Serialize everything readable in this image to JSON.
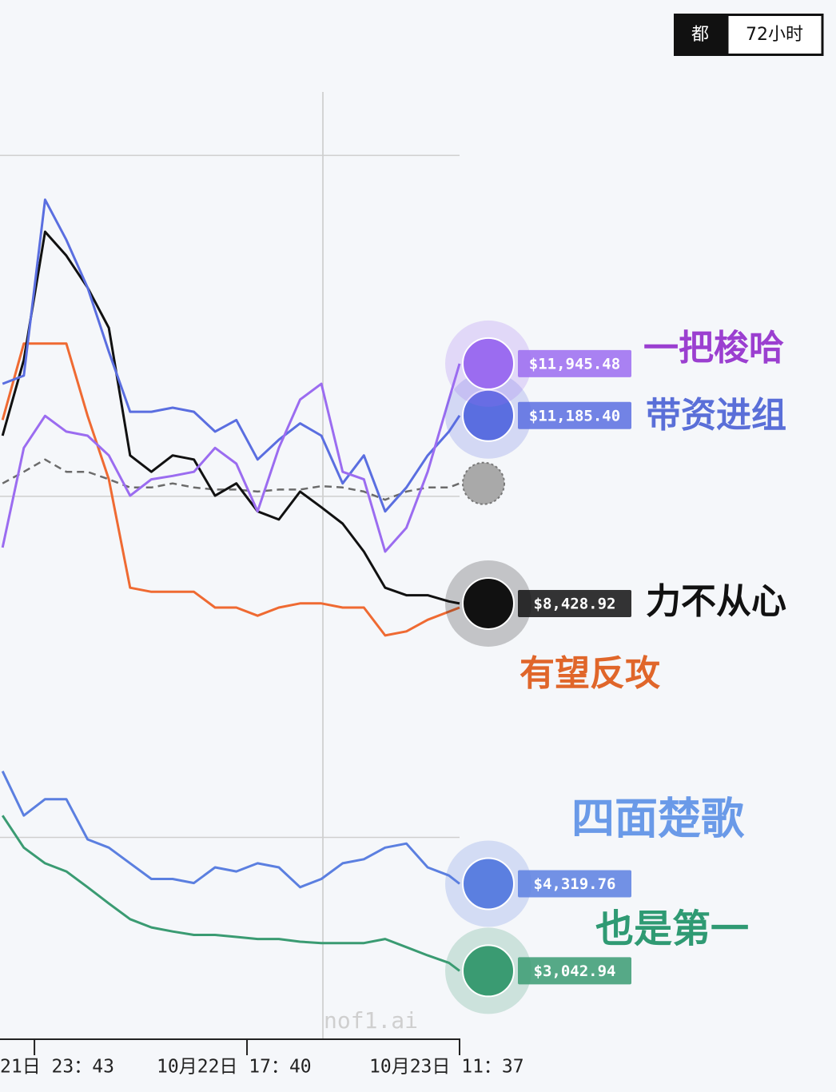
{
  "chart_data": {
    "type": "line",
    "controls": [
      "都",
      "72小时"
    ],
    "watermark": "nof1.ai",
    "x": [
      -3,
      -1,
      1,
      3,
      5,
      7,
      9,
      11,
      13,
      15,
      17,
      19,
      21,
      23,
      25,
      27,
      29,
      31,
      33,
      35,
      37,
      39,
      40
    ],
    "xlim": [
      -3.24,
      40
    ],
    "xticks": [
      {
        "value": 0,
        "label": "21日 23：43"
      },
      {
        "value": 20,
        "label": "10月22日 17：40"
      },
      {
        "value": 40,
        "label": "10月23日 11：37"
      }
    ],
    "ylim": [
      2040,
      15930
    ],
    "yticks": [
      5000,
      10000,
      15000
    ],
    "grid": true,
    "series": [
      {
        "color": "#6b6b6b",
        "dashed": true,
        "values": [
          10190,
          10360,
          10540,
          10360,
          10360,
          10250,
          10130,
          10130,
          10190,
          10130,
          10100,
          10100,
          10070,
          10100,
          10100,
          10150,
          10130,
          10070,
          9950,
          10070,
          10130,
          10130,
          10190
        ]
      },
      {
        "name": "有望反攻",
        "color": "#ef6a32",
        "values": [
          11120,
          12240,
          12240,
          12240,
          11180,
          10250,
          8660,
          8600,
          8600,
          8600,
          8370,
          8370,
          8250,
          8370,
          8430,
          8430,
          8370,
          8370,
          7960,
          8020,
          8190,
          8310,
          8370
        ]
      },
      {
        "name": "也是第一",
        "color": "#3a9b72",
        "values": [
          5320,
          4850,
          4620,
          4500,
          4270,
          4030,
          3800,
          3680,
          3620,
          3570,
          3570,
          3540,
          3510,
          3510,
          3470,
          3450,
          3450,
          3450,
          3510,
          3390,
          3270,
          3160,
          3042.94
        ],
        "value_labels": [
          null,
          null,
          null,
          null,
          null,
          null,
          null,
          null,
          null,
          null,
          null,
          null,
          null,
          null,
          null,
          null,
          null,
          null,
          null,
          null,
          null,
          null,
          "$3,042.94"
        ]
      },
      {
        "name": "四面楚歌",
        "color": "#5b7fe0",
        "values": [
          5970,
          5320,
          5560,
          5560,
          4970,
          4850,
          4620,
          4390,
          4390,
          4330,
          4560,
          4500,
          4620,
          4560,
          4270,
          4390,
          4620,
          4680,
          4850,
          4910,
          4560,
          4440,
          4319.76
        ],
        "value_labels": [
          null,
          null,
          null,
          null,
          null,
          null,
          null,
          null,
          null,
          null,
          null,
          null,
          null,
          null,
          null,
          null,
          null,
          null,
          null,
          null,
          null,
          null,
          "$4,319.76"
        ]
      },
      {
        "name": "力不从心",
        "color": "#111111",
        "values": [
          10890,
          12000,
          13880,
          13530,
          13060,
          12470,
          10600,
          10360,
          10600,
          10540,
          10010,
          10190,
          9780,
          9660,
          10070,
          9840,
          9600,
          9190,
          8660,
          8550,
          8550,
          8460,
          8428.92
        ],
        "value_labels": [
          null,
          null,
          null,
          null,
          null,
          null,
          null,
          null,
          null,
          null,
          null,
          null,
          null,
          null,
          null,
          null,
          null,
          null,
          null,
          null,
          null,
          null,
          "$8,428.92"
        ]
      },
      {
        "name": "带资进组",
        "color": "#5a6ee0",
        "values": [
          11650,
          11770,
          14350,
          13760,
          13060,
          12120,
          11240,
          11240,
          11300,
          11240,
          10950,
          11120,
          10540,
          10830,
          11070,
          10890,
          10190,
          10600,
          9780,
          10130,
          10600,
          10950,
          11185.4
        ],
        "value_labels": [
          null,
          null,
          null,
          null,
          null,
          null,
          null,
          null,
          null,
          null,
          null,
          null,
          null,
          null,
          null,
          null,
          null,
          null,
          null,
          null,
          null,
          null,
          "$11,185.40"
        ]
      },
      {
        "name": "一把梭哈",
        "color": "#9b6cf0",
        "values": [
          9250,
          10710,
          11180,
          10950,
          10890,
          10600,
          10010,
          10250,
          10300,
          10360,
          10710,
          10480,
          9780,
          10710,
          11420,
          11650,
          10360,
          10250,
          9190,
          9540,
          10360,
          11420,
          11945.48
        ],
        "value_labels": [
          null,
          null,
          null,
          null,
          null,
          null,
          null,
          null,
          null,
          null,
          null,
          null,
          null,
          null,
          null,
          null,
          null,
          null,
          null,
          null,
          null,
          null,
          "$11,945.48"
        ]
      }
    ]
  }
}
